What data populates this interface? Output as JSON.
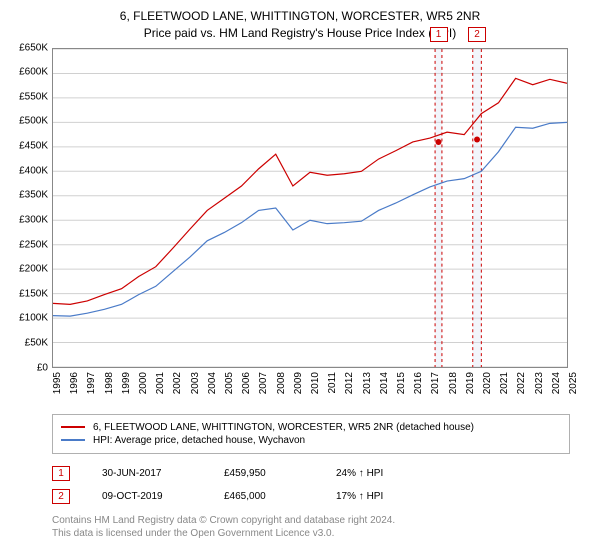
{
  "title": "6, FLEETWOOD LANE, WHITTINGTON, WORCESTER, WR5 2NR",
  "subtitle": "Price paid vs. HM Land Registry's House Price Index (HPI)",
  "chart": {
    "type": "line",
    "background_color": "#ffffff",
    "grid_color": "#d0d0d0",
    "border_color": "#888888",
    "ylabel_prefix": "£",
    "ylim": [
      0,
      650000
    ],
    "ytick_step": 50000,
    "yticks": [
      "£0",
      "£50K",
      "£100K",
      "£150K",
      "£200K",
      "£250K",
      "£300K",
      "£350K",
      "£400K",
      "£450K",
      "£500K",
      "£550K",
      "£600K",
      "£650K"
    ],
    "x_start": 1995,
    "x_end": 2025,
    "xticks": [
      1995,
      1996,
      1997,
      1998,
      1999,
      2000,
      2001,
      2002,
      2003,
      2004,
      2005,
      2006,
      2007,
      2008,
      2009,
      2010,
      2011,
      2012,
      2013,
      2014,
      2015,
      2016,
      2017,
      2018,
      2019,
      2020,
      2021,
      2022,
      2023,
      2024,
      2025
    ],
    "label_fontsize": 10,
    "series": [
      {
        "name": "property",
        "label": "6, FLEETWOOD LANE, WHITTINGTON, WORCESTER, WR5 2NR (detached house)",
        "color": "#cc0000",
        "line_width": 1.2,
        "data": [
          [
            1995,
            130000
          ],
          [
            1996,
            128000
          ],
          [
            1997,
            135000
          ],
          [
            1998,
            148000
          ],
          [
            1999,
            160000
          ],
          [
            2000,
            185000
          ],
          [
            2001,
            205000
          ],
          [
            2002,
            243000
          ],
          [
            2003,
            282000
          ],
          [
            2004,
            320000
          ],
          [
            2005,
            345000
          ],
          [
            2006,
            370000
          ],
          [
            2007,
            405000
          ],
          [
            2008,
            435000
          ],
          [
            2009,
            370000
          ],
          [
            2010,
            398000
          ],
          [
            2011,
            392000
          ],
          [
            2012,
            395000
          ],
          [
            2013,
            400000
          ],
          [
            2014,
            425000
          ],
          [
            2015,
            442000
          ],
          [
            2016,
            460000
          ],
          [
            2017,
            468000
          ],
          [
            2018,
            480000
          ],
          [
            2019,
            475000
          ],
          [
            2020,
            518000
          ],
          [
            2021,
            540000
          ],
          [
            2022,
            590000
          ],
          [
            2023,
            577000
          ],
          [
            2024,
            588000
          ],
          [
            2025,
            580000
          ]
        ]
      },
      {
        "name": "hpi",
        "label": "HPI: Average price, detached house, Wychavon",
        "color": "#4a7bc8",
        "line_width": 1.2,
        "data": [
          [
            1995,
            105000
          ],
          [
            1996,
            104000
          ],
          [
            1997,
            110000
          ],
          [
            1998,
            118000
          ],
          [
            1999,
            128000
          ],
          [
            2000,
            148000
          ],
          [
            2001,
            165000
          ],
          [
            2002,
            195000
          ],
          [
            2003,
            225000
          ],
          [
            2004,
            258000
          ],
          [
            2005,
            275000
          ],
          [
            2006,
            295000
          ],
          [
            2007,
            320000
          ],
          [
            2008,
            325000
          ],
          [
            2009,
            280000
          ],
          [
            2010,
            300000
          ],
          [
            2011,
            293000
          ],
          [
            2012,
            295000
          ],
          [
            2013,
            298000
          ],
          [
            2014,
            320000
          ],
          [
            2015,
            335000
          ],
          [
            2016,
            352000
          ],
          [
            2017,
            368000
          ],
          [
            2018,
            380000
          ],
          [
            2019,
            385000
          ],
          [
            2020,
            400000
          ],
          [
            2021,
            440000
          ],
          [
            2022,
            490000
          ],
          [
            2023,
            488000
          ],
          [
            2024,
            498000
          ],
          [
            2025,
            500000
          ]
        ]
      }
    ],
    "markers": [
      {
        "id": "1",
        "x": 2017.5,
        "band_start": 2017.3,
        "band_end": 2017.7,
        "color": "#cc0000",
        "band_color": "#d9e2f3",
        "date": "30-JUN-2017",
        "price": "£459,950",
        "delta": "24% ↑ HPI",
        "dot_y": 459950
      },
      {
        "id": "2",
        "x": 2019.75,
        "band_start": 2019.5,
        "band_end": 2020.0,
        "color": "#cc0000",
        "band_color": "#d9e2f3",
        "date": "09-OCT-2019",
        "price": "£465,000",
        "delta": "17% ↑ HPI",
        "dot_y": 465000
      }
    ]
  },
  "footer": {
    "line1": "Contains HM Land Registry data © Crown copyright and database right 2024.",
    "line2": "This data is licensed under the Open Government Licence v3.0."
  }
}
